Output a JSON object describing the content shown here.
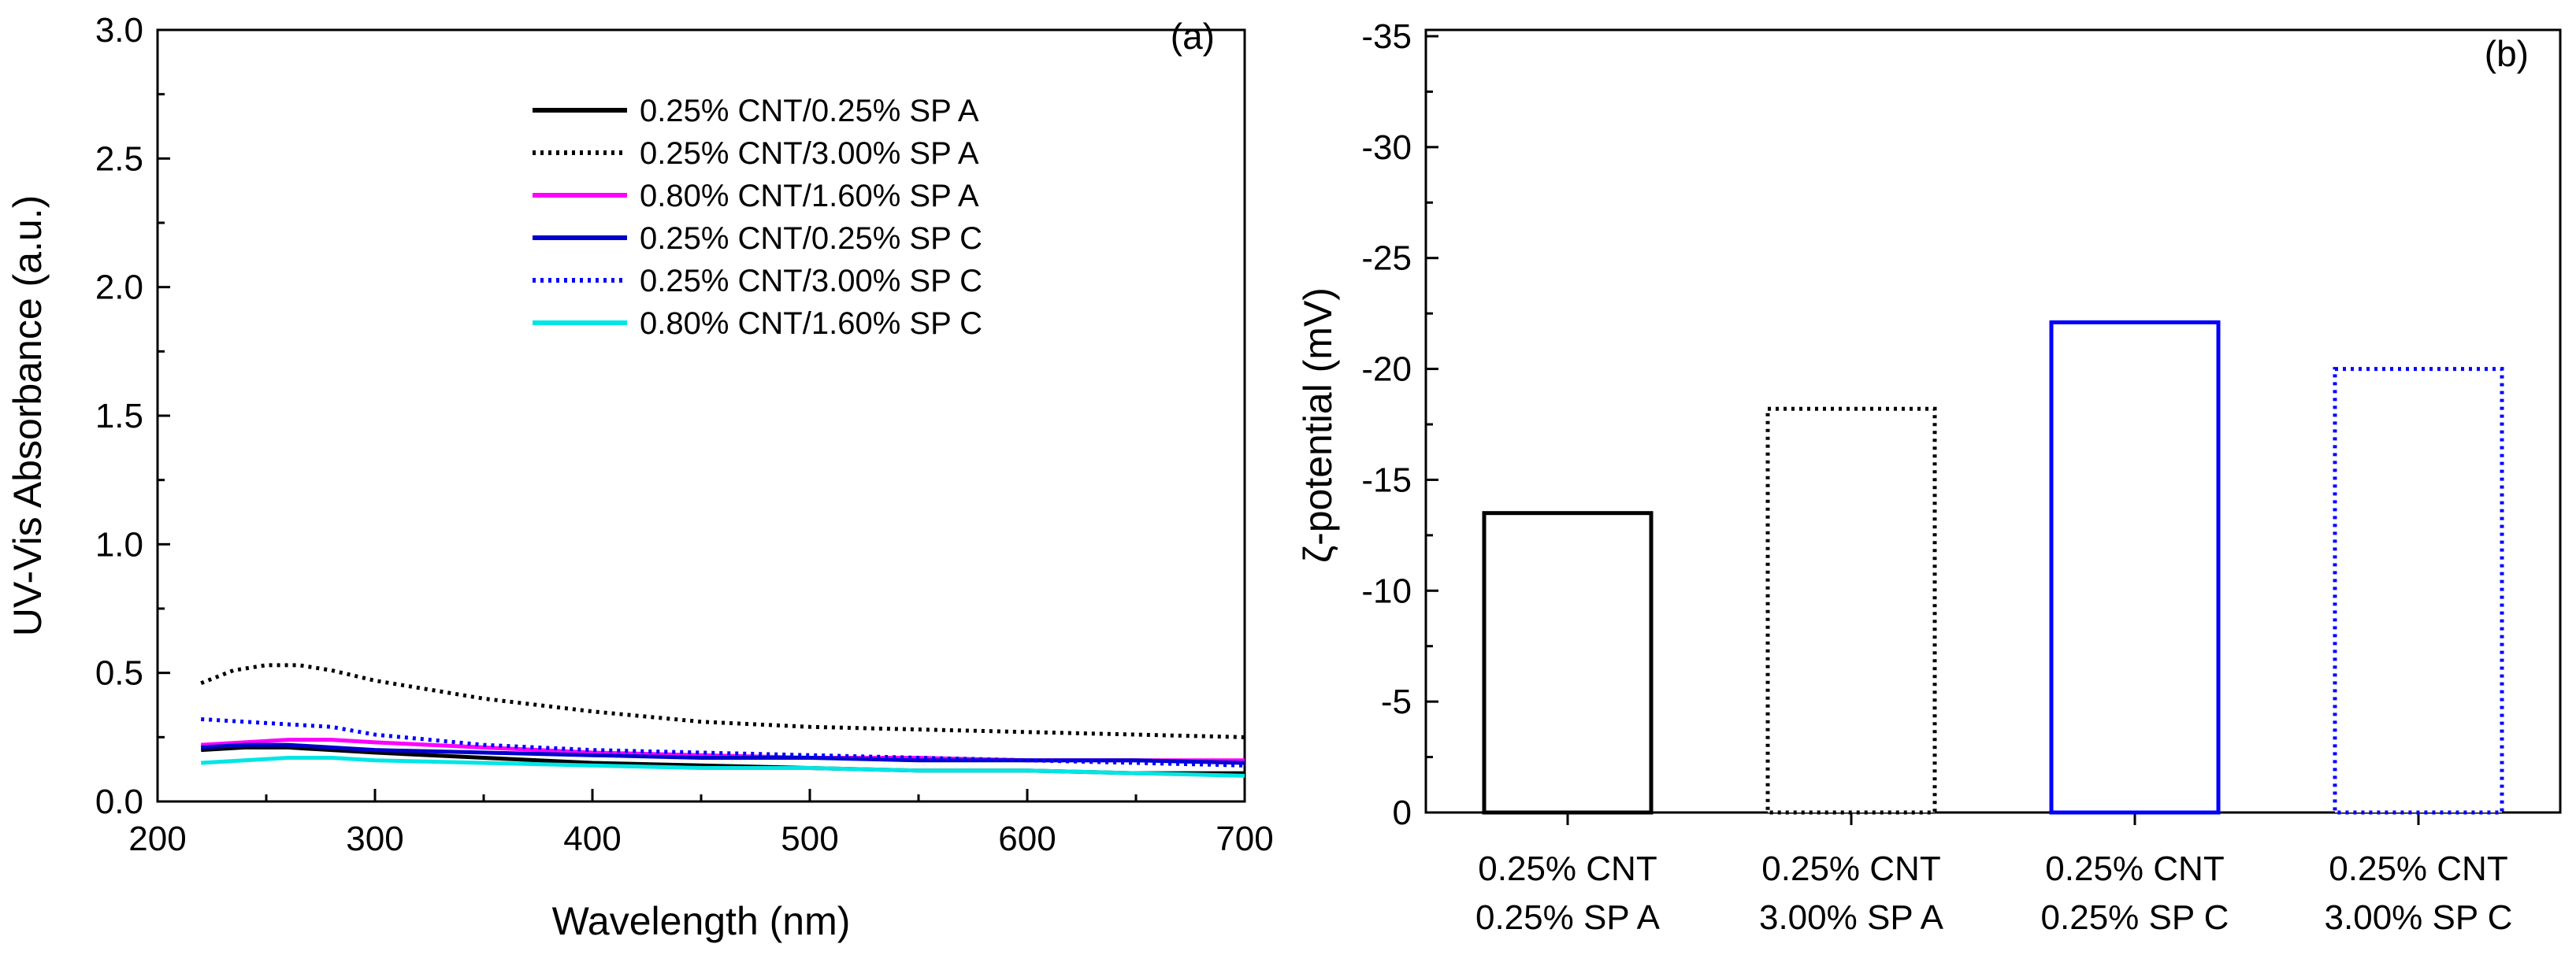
{
  "chart_data": [
    {
      "panel": "(a)",
      "type": "line",
      "xlabel": "Wavelength (nm)",
      "ylabel": "UV-Vis Absorbance (a.u.)",
      "xlim": [
        200,
        700
      ],
      "ylim": [
        0,
        3.0
      ],
      "xticks": [
        "200",
        "300",
        "400",
        "500",
        "600",
        "700"
      ],
      "yticks": [
        "0.0",
        "0.5",
        "1.0",
        "1.5",
        "2.0",
        "2.5",
        "3.0"
      ],
      "legend_position": "top-right",
      "series": [
        {
          "name": "0.25% CNT/0.25% SP A",
          "color": "#000000",
          "style": "solid",
          "x": [
            220,
            240,
            260,
            280,
            300,
            350,
            400,
            450,
            500,
            550,
            600,
            650,
            700
          ],
          "y": [
            0.2,
            0.21,
            0.21,
            0.2,
            0.19,
            0.17,
            0.15,
            0.14,
            0.13,
            0.12,
            0.12,
            0.11,
            0.11
          ]
        },
        {
          "name": "0.25% CNT/3.00% SP A",
          "color": "#000000",
          "style": "dotted",
          "x": [
            220,
            235,
            250,
            265,
            280,
            300,
            350,
            400,
            450,
            500,
            550,
            600,
            650,
            700
          ],
          "y": [
            0.46,
            0.51,
            0.53,
            0.53,
            0.51,
            0.47,
            0.4,
            0.35,
            0.31,
            0.29,
            0.28,
            0.27,
            0.26,
            0.25
          ]
        },
        {
          "name": "0.80% CNT/1.60% SP A",
          "color": "#ff00ff",
          "style": "solid",
          "x": [
            220,
            240,
            260,
            280,
            300,
            350,
            400,
            450,
            500,
            550,
            600,
            650,
            700
          ],
          "y": [
            0.22,
            0.23,
            0.24,
            0.24,
            0.23,
            0.21,
            0.19,
            0.18,
            0.17,
            0.17,
            0.16,
            0.16,
            0.16
          ]
        },
        {
          "name": "0.25% CNT/0.25% SP C",
          "color": "#0000cc",
          "style": "solid",
          "x": [
            220,
            240,
            260,
            280,
            300,
            350,
            400,
            450,
            500,
            550,
            600,
            650,
            700
          ],
          "y": [
            0.21,
            0.22,
            0.22,
            0.21,
            0.2,
            0.19,
            0.18,
            0.17,
            0.17,
            0.16,
            0.16,
            0.16,
            0.15
          ]
        },
        {
          "name": "0.25% CNT/3.00% SP C",
          "color": "#0000ff",
          "style": "dotted",
          "x": [
            220,
            240,
            260,
            280,
            300,
            350,
            400,
            450,
            500,
            550,
            600,
            650,
            700
          ],
          "y": [
            0.32,
            0.31,
            0.3,
            0.29,
            0.26,
            0.22,
            0.2,
            0.19,
            0.18,
            0.17,
            0.16,
            0.15,
            0.14
          ]
        },
        {
          "name": "0.80% CNT/1.60% SP C",
          "color": "#00e5e5",
          "style": "solid",
          "x": [
            220,
            240,
            260,
            280,
            300,
            350,
            400,
            450,
            500,
            550,
            600,
            650,
            700
          ],
          "y": [
            0.15,
            0.16,
            0.17,
            0.17,
            0.16,
            0.15,
            0.14,
            0.13,
            0.13,
            0.12,
            0.12,
            0.11,
            0.1
          ]
        }
      ]
    },
    {
      "panel": "(b)",
      "type": "bar",
      "ylabel": "ζ-potential (mV)",
      "ylim": [
        0,
        -35
      ],
      "yticks": [
        "0",
        "-5",
        "-10",
        "-15",
        "-20",
        "-25",
        "-30",
        "-35"
      ],
      "categories": [
        [
          "0.25% CNT",
          "0.25% SP A"
        ],
        [
          "0.25% CNT",
          "3.00% SP A"
        ],
        [
          "0.25% CNT",
          "0.25% SP C"
        ],
        [
          "0.25% CNT",
          "3.00% SP C"
        ]
      ],
      "values": [
        -13.5,
        -18.2,
        -22.1,
        -20.0
      ],
      "bar_colors": [
        "#000000",
        "#000000",
        "#0000ff",
        "#0000ff"
      ],
      "bar_styles": [
        "solid",
        "dotted",
        "solid",
        "dotted"
      ]
    }
  ]
}
